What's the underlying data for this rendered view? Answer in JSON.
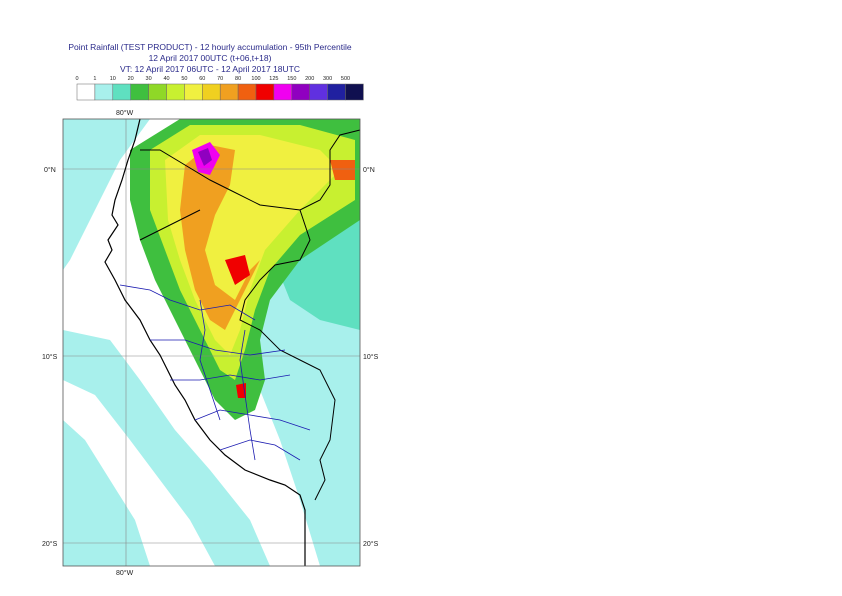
{
  "title": {
    "line1": "Point Rainfall (TEST PRODUCT) - 12 hourly accumulation - 95th Percentile",
    "line2": "12 April 2017 00UTC (t+06,t+18)",
    "line3": "VT: 12 April 2017 06UTC - 12 April 2017 18UTC"
  },
  "legend": {
    "levels": [
      "0",
      "1",
      "10",
      "20",
      "30",
      "40",
      "50",
      "60",
      "70",
      "80",
      "100",
      "125",
      "150",
      "200",
      "300",
      "500"
    ],
    "colors": [
      "#ffffff",
      "#a8f0ec",
      "#5fe0c0",
      "#3fbf3f",
      "#8fd827",
      "#c8f030",
      "#f0f040",
      "#f0d020",
      "#f0a020",
      "#f06010",
      "#f00000",
      "#f000f0",
      "#9000c0",
      "#6030e0",
      "#2020a0",
      "#101050"
    ]
  },
  "map": {
    "lat_labels": {
      "north_left": "0°N",
      "north_right": "0°N",
      "s10_left": "10°S",
      "s10_right": "10°S",
      "s20_left": "20°S",
      "s20_right": "20°S"
    },
    "lon_labels": {
      "top": "80°W",
      "bottom": "80°W"
    }
  }
}
